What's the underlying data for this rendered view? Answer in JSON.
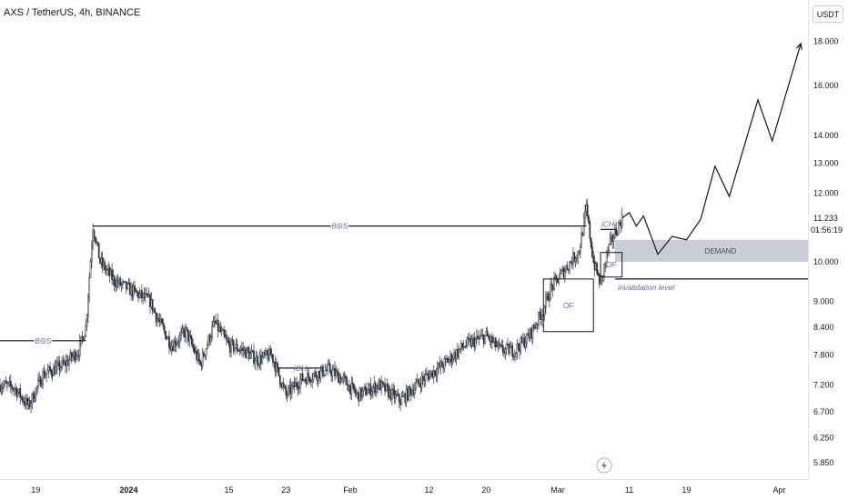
{
  "header": {
    "symbol_title": "AXS / TetherUS, 4h, BINANCE",
    "currency": "USDT"
  },
  "chart_data": {
    "type": "candlestick",
    "price_axis": {
      "scale": "log",
      "range": [
        5.6,
        20.1
      ],
      "ticks": [
        "18.000",
        "16.000",
        "14.000",
        "13.000",
        "12.000",
        "11.233",
        "10.000",
        "9.000",
        "8.400",
        "7.800",
        "7.200",
        "6.700",
        "6.250",
        "5.850"
      ],
      "countdown": "01:56:19"
    },
    "time_axis": {
      "range": [
        "2023-12-14",
        "2024-04-05"
      ],
      "ticks": [
        {
          "label": "19",
          "date": "2023-12-19"
        },
        {
          "label": "2024",
          "date": "2024-01-01"
        },
        {
          "label": "15",
          "date": "2024-01-15"
        },
        {
          "label": "23",
          "date": "2024-01-23"
        },
        {
          "label": "Feb",
          "date": "2024-02-01"
        },
        {
          "label": "12",
          "date": "2024-02-12"
        },
        {
          "label": "20",
          "date": "2024-02-20"
        },
        {
          "label": "Mar",
          "date": "2024-03-01"
        },
        {
          "label": "11",
          "date": "2024-03-11"
        },
        {
          "label": "19",
          "date": "2024-03-19"
        },
        {
          "label": "Apr",
          "date": "2024-04-01"
        }
      ]
    },
    "price_path": [
      [
        "2023-12-14",
        7.2
      ],
      [
        "2023-12-16",
        7.15
      ],
      [
        "2023-12-18",
        6.8
      ],
      [
        "2023-12-20",
        7.4
      ],
      [
        "2023-12-23",
        7.6
      ],
      [
        "2023-12-25",
        7.9
      ],
      [
        "2023-12-26",
        8.4
      ],
      [
        "2023-12-27",
        11.0
      ],
      [
        "2023-12-28",
        10.0
      ],
      [
        "2023-12-30",
        9.5
      ],
      [
        "2024-01-02",
        9.2
      ],
      [
        "2024-01-04",
        9.0
      ],
      [
        "2024-01-05",
        8.6
      ],
      [
        "2024-01-07",
        8.0
      ],
      [
        "2024-01-09",
        8.3
      ],
      [
        "2024-01-11",
        7.6
      ],
      [
        "2024-01-13",
        8.5
      ],
      [
        "2024-01-15",
        8.0
      ],
      [
        "2024-01-17",
        7.9
      ],
      [
        "2024-01-19",
        7.7
      ],
      [
        "2024-01-21",
        7.8
      ],
      [
        "2024-01-23",
        7.0
      ],
      [
        "2024-01-25",
        7.3
      ],
      [
        "2024-01-27",
        7.4
      ],
      [
        "2024-01-29",
        7.5
      ],
      [
        "2024-01-31",
        7.3
      ],
      [
        "2024-02-02",
        7.0
      ],
      [
        "2024-02-05",
        7.2
      ],
      [
        "2024-02-08",
        6.9
      ],
      [
        "2024-02-11",
        7.3
      ],
      [
        "2024-02-14",
        7.6
      ],
      [
        "2024-02-17",
        8.0
      ],
      [
        "2024-02-20",
        8.2
      ],
      [
        "2024-02-22",
        7.9
      ],
      [
        "2024-02-24",
        7.9
      ],
      [
        "2024-02-26",
        8.2
      ],
      [
        "2024-02-28",
        8.8
      ],
      [
        "2024-02-29",
        9.3
      ],
      [
        "2024-03-02",
        9.8
      ],
      [
        "2024-03-04",
        10.3
      ],
      [
        "2024-03-05",
        11.5
      ],
      [
        "2024-03-06",
        10.0
      ],
      [
        "2024-03-07",
        9.4
      ],
      [
        "2024-03-08",
        10.3
      ],
      [
        "2024-03-09",
        10.8
      ],
      [
        "2024-03-10",
        11.233
      ]
    ],
    "projection": {
      "points": [
        [
          "2024-03-10",
          11.233
        ],
        [
          "2024-03-11",
          11.4
        ],
        [
          "2024-03-12",
          11.0
        ],
        [
          "2024-03-13",
          11.3
        ],
        [
          "2024-03-15",
          10.2
        ],
        [
          "2024-03-17",
          10.7
        ],
        [
          "2024-03-19",
          10.6
        ],
        [
          "2024-03-21",
          11.2
        ],
        [
          "2024-03-23",
          12.9
        ],
        [
          "2024-03-25",
          11.9
        ],
        [
          "2024-03-29",
          15.4
        ],
        [
          "2024-03-31",
          13.8
        ],
        [
          "2024-04-04",
          17.9
        ]
      ]
    },
    "targets": [
      {
        "label": "18.016",
        "value": 18.016,
        "date": "2024-04-04"
      },
      {
        "label": "13.729",
        "value": 13.729,
        "date": "2024-04-04"
      }
    ],
    "zones": [
      {
        "label": "DEMAND",
        "from_date": "2024-03-09",
        "to_date": "2024-04-05",
        "low": 10.0,
        "high": 10.6,
        "color": "#b8bcc4"
      }
    ],
    "boxes": [
      {
        "label": "OF",
        "from_date": "2024-02-28",
        "to_date": "2024-03-06",
        "low": 8.3,
        "high": 9.55
      },
      {
        "label": "OF",
        "from_date": "2024-03-07",
        "to_date": "2024-03-10",
        "low": 9.6,
        "high": 10.25
      }
    ],
    "levels": [
      {
        "label": "BOS",
        "value": 8.1,
        "from_date": "2023-12-14",
        "to_date": "2023-12-26"
      },
      {
        "label": "BOS",
        "value": 11.0,
        "from_date": "2023-12-27",
        "to_date": "2024-03-05"
      },
      {
        "label": "iCH",
        "value": 7.53,
        "from_date": "2024-01-22",
        "to_date": "2024-01-28"
      },
      {
        "label": "iCH",
        "value": 10.9,
        "from_date": "2024-03-07",
        "to_date": "2024-03-09"
      },
      {
        "label": "invalidation level",
        "value": 9.55,
        "from_date": "2024-03-09",
        "to_date": "2024-04-05"
      }
    ],
    "colors": {
      "candle": "#2a2e39",
      "drawing": "#131722",
      "label_bg": "#6a6d78",
      "annotation": "#6b6e9a"
    }
  }
}
